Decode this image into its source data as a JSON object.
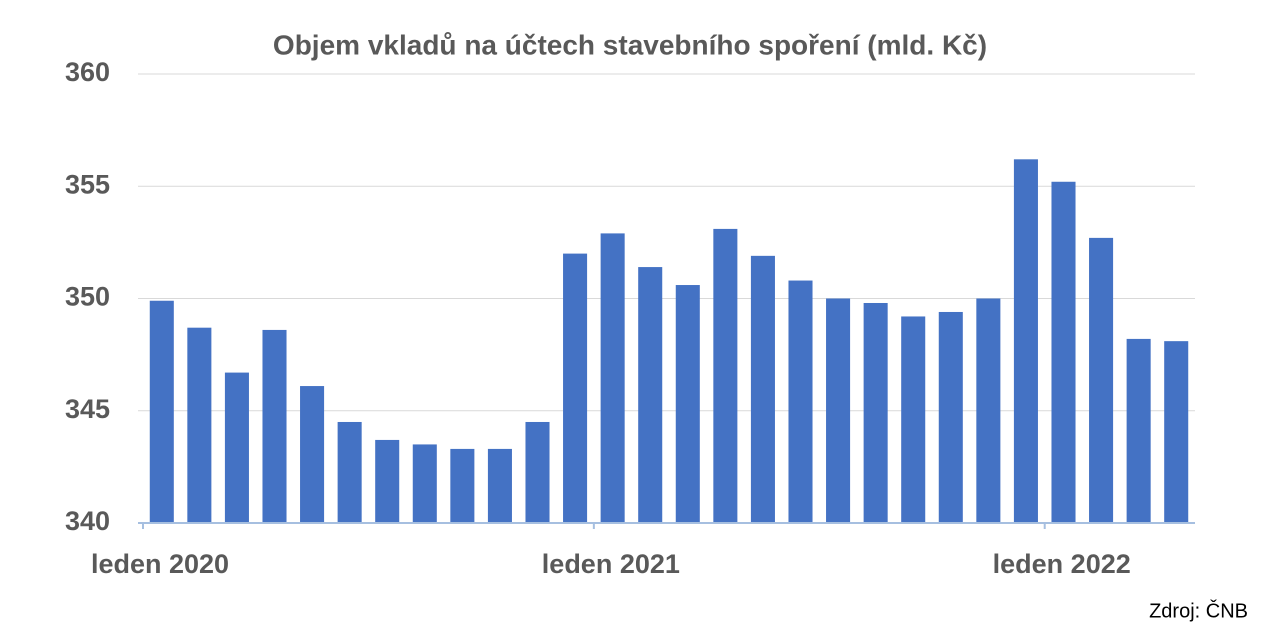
{
  "chart_data": {
    "type": "bar",
    "title": "Objem vkladů na účtech stavebního spoření (mld. Kč)",
    "source": "Zdroj: ČNB",
    "categories": [
      "leden 2020",
      null,
      null,
      null,
      null,
      null,
      null,
      null,
      null,
      null,
      null,
      null,
      "leden 2021",
      null,
      null,
      null,
      null,
      null,
      null,
      null,
      null,
      null,
      null,
      null,
      "leden 2022",
      null,
      null,
      null
    ],
    "values": [
      349.9,
      348.7,
      346.7,
      348.6,
      346.1,
      344.5,
      343.7,
      343.5,
      343.3,
      343.3,
      344.5,
      352.0,
      352.9,
      351.4,
      350.6,
      353.1,
      351.9,
      350.8,
      350.0,
      349.8,
      349.2,
      349.4,
      350.0,
      356.2,
      355.2,
      352.7,
      348.2,
      348.1
    ],
    "color": "#4472c4",
    "ylim": [
      340,
      360
    ],
    "yticks": [
      340,
      345,
      350,
      355,
      360
    ],
    "grid": true
  }
}
